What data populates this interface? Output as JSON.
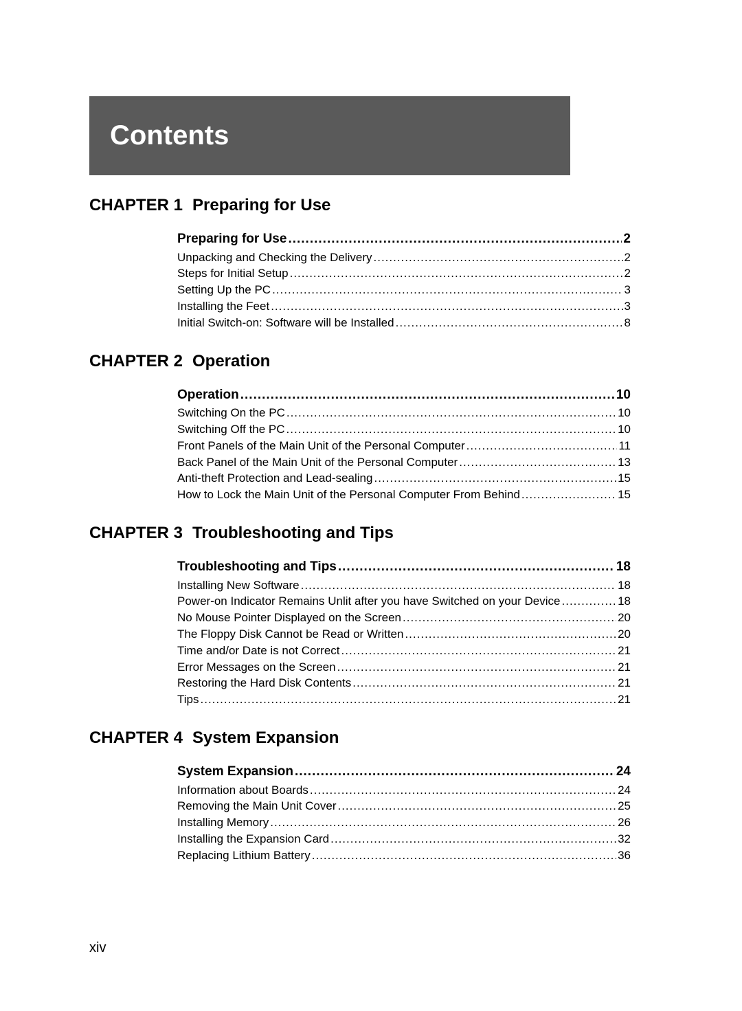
{
  "banner": {
    "title": "Contents"
  },
  "chapters": [
    {
      "label": "CHAPTER 1",
      "title": "Preparing for Use",
      "section": {
        "title": "Preparing for Use",
        "page": "2"
      },
      "entries": [
        {
          "title": "Unpacking and Checking the Delivery",
          "page": "2"
        },
        {
          "title": "Steps for Initial Setup",
          "page": "2"
        },
        {
          "title": "Setting Up the PC",
          "page": "3"
        },
        {
          "title": "Installing the Feet",
          "page": "3"
        },
        {
          "title": "Initial Switch-on: Software will be Installed",
          "page": "8"
        }
      ]
    },
    {
      "label": "CHAPTER 2",
      "title": "Operation",
      "section": {
        "title": "Operation",
        "page": "10"
      },
      "entries": [
        {
          "title": "Switching On the PC",
          "page": "10"
        },
        {
          "title": "Switching Off the PC",
          "page": "10"
        },
        {
          "title": "Front Panels of the Main Unit of the Personal Computer",
          "page": "11"
        },
        {
          "title": "Back Panel of the Main Unit of the Personal Computer",
          "page": "13"
        },
        {
          "title": "Anti-theft Protection and Lead-sealing",
          "page": "15"
        },
        {
          "title": "How to Lock the Main Unit of the Personal Computer From Behind",
          "page": "15"
        }
      ]
    },
    {
      "label": "CHAPTER 3",
      "title": "Troubleshooting and Tips",
      "section": {
        "title": "Troubleshooting and Tips",
        "page": "18"
      },
      "entries": [
        {
          "title": "Installing New Software",
          "page": "18"
        },
        {
          "title": "Power-on Indicator Remains Unlit after you have Switched on your Device",
          "page": "18"
        },
        {
          "title": "No Mouse Pointer Displayed on the Screen",
          "page": "20"
        },
        {
          "title": "The Floppy Disk Cannot be Read or Written",
          "page": "20"
        },
        {
          "title": "Time and/or Date is not Correct",
          "page": "21"
        },
        {
          "title": "Error Messages on the Screen",
          "page": "21"
        },
        {
          "title": "Restoring the Hard Disk Contents",
          "page": "21"
        },
        {
          "title": "Tips",
          "page": "21"
        }
      ]
    },
    {
      "label": "CHAPTER 4",
      "title": "System Expansion",
      "section": {
        "title": "System Expansion",
        "page": "24"
      },
      "entries": [
        {
          "title": "Information about Boards",
          "page": "24"
        },
        {
          "title": "Removing the Main Unit Cover",
          "page": "25"
        },
        {
          "title": "Installing Memory",
          "page": "26"
        },
        {
          "title": "Installing the Expansion Card",
          "page": "32"
        },
        {
          "title": "Replacing Lithium Battery",
          "page": "36"
        }
      ]
    }
  ],
  "footer": {
    "pageNumber": "xiv"
  }
}
